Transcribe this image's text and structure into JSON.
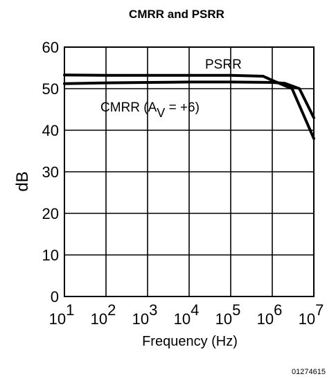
{
  "chart_data": {
    "type": "line",
    "title": "CMRR and PSRR",
    "xlabel": "Frequency (Hz)",
    "ylabel": "dB",
    "xscale": "log",
    "xlim": [
      10,
      10000000
    ],
    "ylim": [
      0,
      60
    ],
    "grid": true,
    "x_ticks": [
      {
        "base": "10",
        "exp": "1"
      },
      {
        "base": "10",
        "exp": "2"
      },
      {
        "base": "10",
        "exp": "3"
      },
      {
        "base": "10",
        "exp": "4"
      },
      {
        "base": "10",
        "exp": "5"
      },
      {
        "base": "10",
        "exp": "6"
      },
      {
        "base": "10",
        "exp": "7"
      }
    ],
    "y_ticks": [
      "0",
      "10",
      "20",
      "30",
      "40",
      "50",
      "60"
    ],
    "series": [
      {
        "name": "PSRR",
        "x": [
          10,
          100,
          1000,
          10000,
          100000,
          600000,
          1000000,
          3000000,
          10000000
        ],
        "y": [
          53.3,
          53.2,
          53.2,
          53.2,
          53.2,
          53.0,
          52.0,
          50.0,
          38.0
        ]
      },
      {
        "name": "CMRR (AV = +6)",
        "x": [
          10,
          100,
          1000,
          10000,
          100000,
          1000000,
          2000000,
          4500000,
          10000000
        ],
        "y": [
          51.2,
          51.4,
          51.5,
          51.6,
          51.6,
          51.5,
          51.3,
          50.0,
          43.0
        ]
      }
    ],
    "annotations": {
      "psrr": "PSRR",
      "cmrr_prefix": "CMRR (A",
      "cmrr_sub": "V",
      "cmrr_suffix": " = +6)"
    }
  },
  "figure_code": "01274615",
  "colors": {
    "line": "#000000",
    "grid": "#000000",
    "background": "#ffffff"
  }
}
